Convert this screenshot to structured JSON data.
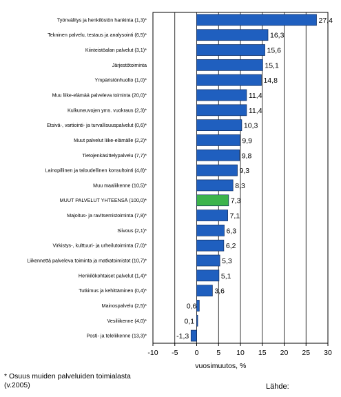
{
  "chart_data": {
    "type": "bar",
    "orientation": "horizontal",
    "categories": [
      "Työnvälitys ja henkilöstön hankinta (1,3)*",
      "Tekninen palvelu, testaus ja analysointi (6,5)*",
      "Kiinteistöalan palvelut (3,1)*",
      "Järjestötoiminta",
      "Ympäristönhuolto (1,0)*",
      "Muu liike-elämää palveleva toiminta (20,0)*",
      "Kulkuneuvojen yms. vuokraus (2,3)*",
      "Etsivä-, vartiointi- ja turvallisuuspalvelut (0,6)*",
      "Muut palvelut liike-elämälle (2,2)*",
      "Tietojenkäsittelypalvelu (7,7)*",
      "Lainopillinen ja taloudellinen konsultointi (4,8)*",
      "Muu maaliikenne (10,5)*",
      "MUUT PALVELUT YHTEENSÄ (100,0)*",
      "Majoitus- ja ravitsemistoiminta (7,8)*",
      "Siivous (2,1)*",
      "Virkistys-, kulttuuri- ja urheilutoiminta (7,0)*",
      "Liikennettä palveleva toiminta ja matkatoimistot (10,7)*",
      "Henkilökohtaiset palvelut (1,4)*",
      "Tutkimus ja kehittäminen (0,4)*",
      "Mainospalvelu (2,5)*",
      "Vesiliikenne (4,0)*",
      "Posti- ja teleliikenne (13,3)*"
    ],
    "values": [
      27.4,
      16.3,
      15.6,
      15.1,
      14.8,
      11.4,
      11.4,
      10.3,
      9.9,
      9.8,
      9.3,
      8.3,
      7.3,
      7.1,
      6.3,
      6.2,
      5.3,
      5.1,
      3.6,
      0.6,
      0.1,
      -1.3
    ],
    "value_labels": [
      "27,4",
      "16,3",
      "15,6",
      "15,1",
      "14,8",
      "11,4",
      "11,4",
      "10,3",
      "9,9",
      "9,8",
      "9,3",
      "8,3",
      "7,3",
      "7,1",
      "6,3",
      "6,2",
      "5,3",
      "5,1",
      "3,6",
      "0,6",
      "0,1",
      "-1,3"
    ],
    "highlight_index": 12,
    "xlabel": "vuosimuutos, %",
    "ylabel": "",
    "xlim": [
      -10,
      30
    ],
    "xticks": [
      -10,
      -5,
      0,
      5,
      10,
      15,
      20,
      25,
      30
    ],
    "grid": "vertical",
    "colors": {
      "bar": "#1f5fbf",
      "highlight": "#3cb44b",
      "bar_edge": "#0d2a5c",
      "grid": "#000000"
    }
  },
  "footnote": "* Osuus muiden palveluiden toimialasta (v.2005)",
  "source_label": "Lähde:"
}
